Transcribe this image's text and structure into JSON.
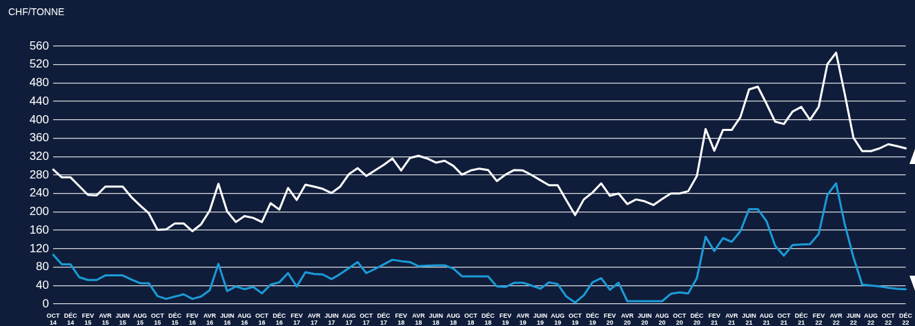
{
  "chart_data": {
    "type": "line",
    "ylabel": "CHF/TONNE",
    "categories": [
      "OCT 14",
      null,
      "DÉC 14",
      null,
      "FEV 15",
      null,
      "AVR 15",
      null,
      "JUIN 15",
      null,
      "AUG 15",
      null,
      "OCT 15",
      null,
      "DÉC 15",
      null,
      "FEV 16",
      null,
      "AVR 16",
      null,
      "JUIN 16",
      null,
      "AUG 16",
      null,
      "OCT 16",
      null,
      "DÉC 16",
      null,
      "FEV 17",
      null,
      "AVR 17",
      null,
      "JUIN 17",
      null,
      "AUG 17",
      null,
      "OCT 17",
      null,
      "DÉC 17",
      null,
      "FEV 18",
      null,
      "AVR 18",
      null,
      "JUIN 18",
      null,
      "AUG 18",
      null,
      "OCT 18",
      null,
      "DÉC 18",
      null,
      "FEV 19",
      null,
      "AVR 19",
      null,
      "JUIN 19",
      null,
      "AUG 19",
      null,
      "OCT 19",
      null,
      "DÉC 19",
      null,
      "FEV 20",
      null,
      "AVR 20",
      null,
      "JUIN 20",
      null,
      "AUG 20",
      null,
      "OCT 20",
      null,
      "DÉC 20",
      null,
      "FEV 21",
      null,
      "AVR 21",
      null,
      "JUIN 21",
      null,
      "AUG 21",
      null,
      "OCT 21",
      null,
      "DÉC 21",
      null,
      "FEV 22",
      null,
      "AVR 22",
      null,
      "JUIN 22",
      null,
      "AUG 22",
      null,
      "OCT 22",
      null,
      "DÉC 22"
    ],
    "series": [
      {
        "color": "#ffffff",
        "values": [
          292,
          275,
          275,
          256,
          237,
          236,
          255,
          255,
          255,
          232,
          214,
          197,
          161,
          162,
          175,
          175,
          158,
          173,
          203,
          261,
          201,
          178,
          191,
          187,
          178,
          219,
          205,
          252,
          226,
          259,
          255,
          250,
          241,
          255,
          282,
          295,
          278,
          290,
          302,
          316,
          290,
          317,
          322,
          316,
          307,
          311,
          300,
          281,
          290,
          294,
          291,
          267,
          281,
          291,
          290,
          280,
          269,
          258,
          258,
          225,
          193,
          227,
          242,
          262,
          235,
          240,
          217,
          227,
          223,
          215,
          228,
          240,
          240,
          245,
          278,
          380,
          333,
          378,
          378,
          406,
          466,
          472,
          435,
          396,
          391,
          418,
          428,
          400,
          428,
          521,
          546,
          456,
          361,
          332,
          332,
          338,
          347,
          343,
          338
        ]
      },
      {
        "color": "#1b9bd7",
        "values": [
          107,
          86,
          86,
          58,
          52,
          52,
          62,
          62,
          62,
          53,
          45,
          45,
          17,
          11,
          16,
          21,
          11,
          16,
          30,
          87,
          28,
          38,
          32,
          37,
          23,
          42,
          47,
          67,
          38,
          69,
          65,
          64,
          54,
          65,
          78,
          91,
          67,
          76,
          86,
          96,
          93,
          91,
          82,
          83,
          84,
          84,
          77,
          60,
          60,
          60,
          60,
          38,
          37,
          46,
          46,
          40,
          33,
          47,
          43,
          16,
          3,
          19,
          47,
          56,
          31,
          46,
          6,
          6,
          6,
          6,
          6,
          22,
          25,
          23,
          56,
          146,
          115,
          143,
          135,
          158,
          206,
          206,
          180,
          126,
          105,
          128,
          129,
          130,
          152,
          237,
          262,
          173,
          101,
          42,
          40,
          38,
          35,
          33,
          32
        ]
      }
    ],
    "ylim": [
      0,
      560
    ],
    "yticks": [
      0,
      40,
      80,
      120,
      160,
      200,
      240,
      280,
      320,
      360,
      400,
      440,
      480,
      520,
      560
    ],
    "grid": "y",
    "marker": "none",
    "line_style": "solid"
  }
}
